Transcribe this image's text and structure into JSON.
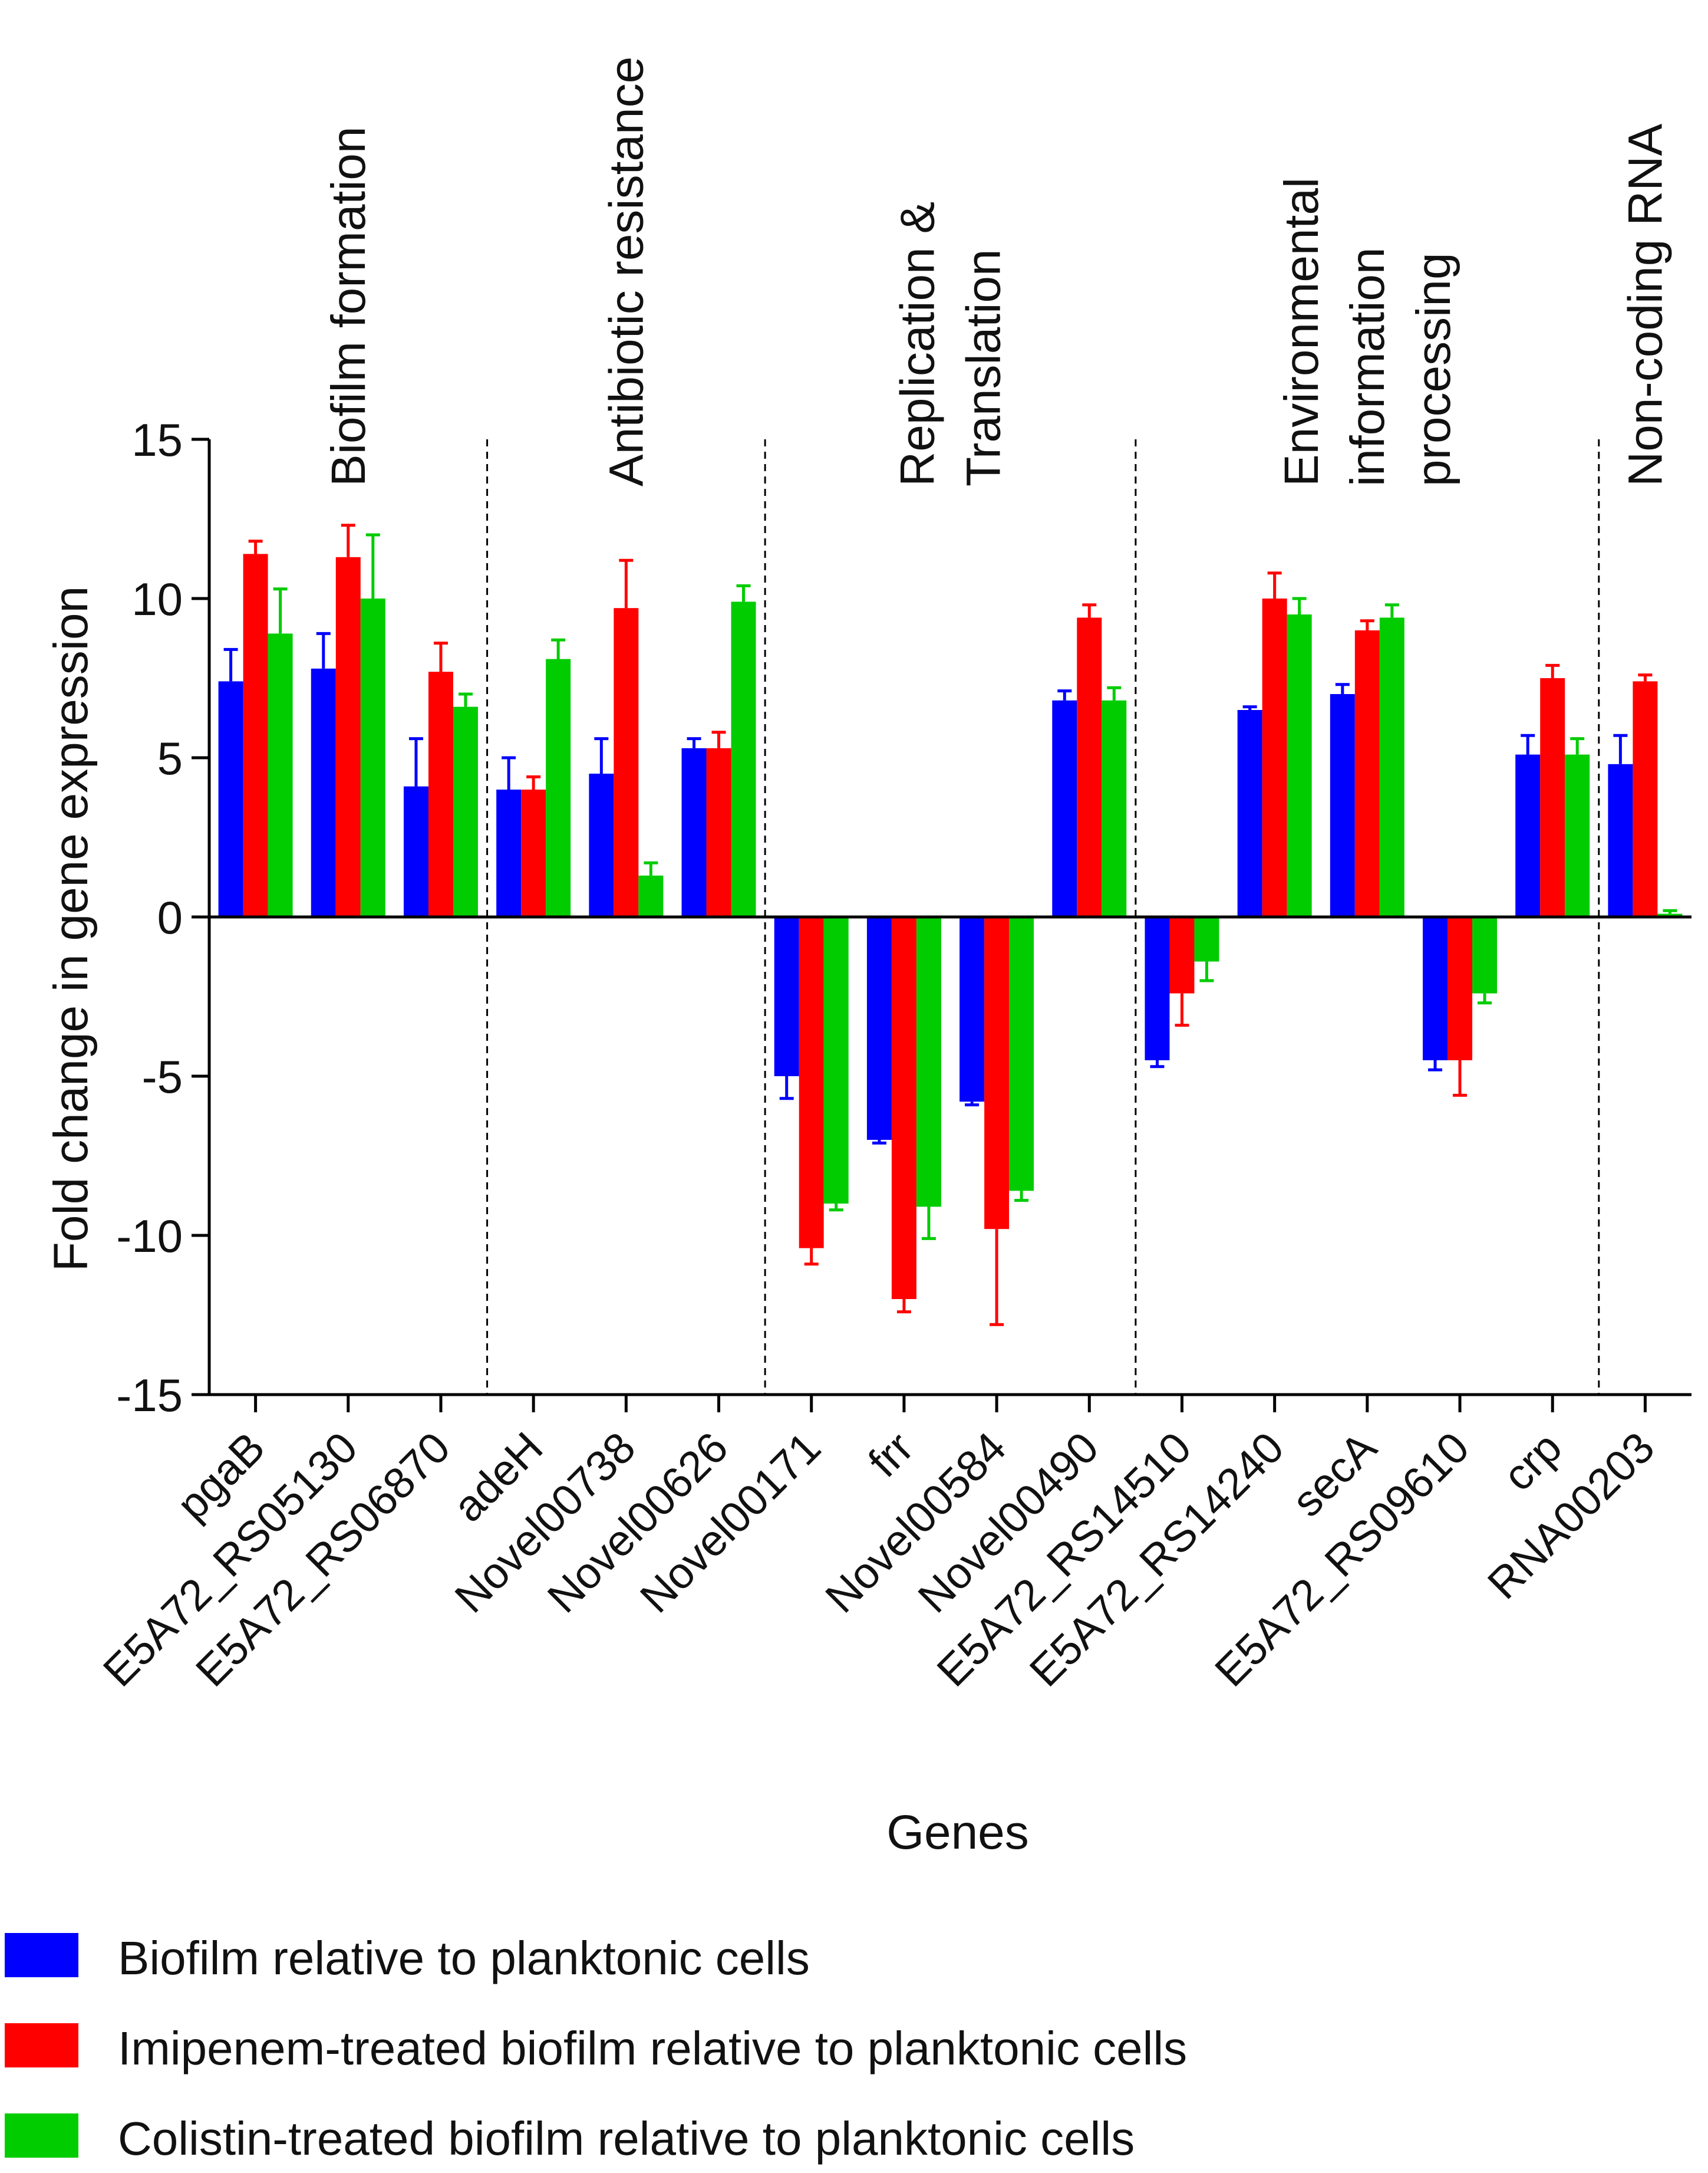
{
  "chart_data": {
    "type": "bar",
    "ylabel": "Fold change in gene expression",
    "xlabel": "Genes",
    "ylim": [
      -15,
      15
    ],
    "yticks": [
      15,
      10,
      5,
      0,
      -5,
      -10,
      -15
    ],
    "yticklabels": [
      "15",
      "10",
      "5",
      "0",
      "-5",
      "-10",
      "-15"
    ],
    "categories": [
      "pgaB",
      "E5A72_RS05130",
      "E5A72_RS06870",
      "adeH",
      "Novel00738",
      "Novel00626",
      "Novel00171",
      "frr",
      "Novel00584",
      "Novel00490",
      "E5A72_RS14510",
      "E5A72_RS14240",
      "secA",
      "E5A72_RS09610",
      "crp",
      "RNA00203"
    ],
    "series": [
      {
        "name": "Biofilm relative to planktonic cells",
        "color": "#0000ff",
        "values": [
          7.4,
          7.8,
          4.1,
          4.0,
          4.5,
          5.3,
          -5.0,
          -7.0,
          -5.8,
          6.8,
          -4.5,
          6.5,
          7.0,
          -4.5,
          5.1,
          4.8
        ],
        "errors": [
          1.0,
          1.1,
          1.5,
          1.0,
          1.1,
          0.3,
          0.7,
          0.1,
          0.1,
          0.3,
          0.2,
          0.1,
          0.3,
          0.3,
          0.6,
          0.9
        ]
      },
      {
        "name": "Imipenem-treated biofilm relative to planktonic cells",
        "color": "#ff0000",
        "values": [
          11.4,
          11.3,
          7.7,
          4.0,
          9.7,
          5.3,
          -10.4,
          -12.0,
          -9.8,
          9.4,
          -2.4,
          10.0,
          9.0,
          -4.5,
          7.5,
          7.4
        ],
        "errors": [
          0.4,
          1.0,
          0.9,
          0.4,
          1.5,
          0.5,
          0.5,
          0.4,
          3.0,
          0.4,
          1.0,
          0.8,
          0.3,
          1.1,
          0.4,
          0.2
        ]
      },
      {
        "name": "Colistin-treated biofilm relative to planktonic cells",
        "color": "#00cc00",
        "values": [
          8.9,
          10.0,
          6.6,
          8.1,
          1.3,
          9.9,
          -9.0,
          -9.1,
          -8.6,
          6.8,
          -1.4,
          9.5,
          9.4,
          -2.4,
          5.1,
          0.1
        ],
        "errors": [
          1.4,
          2.0,
          0.4,
          0.6,
          0.4,
          0.5,
          0.2,
          1.0,
          0.3,
          0.4,
          0.6,
          0.5,
          0.4,
          0.3,
          0.5,
          0.1
        ]
      }
    ],
    "groups": [
      {
        "label_lines": [
          "Biofilm formation"
        ],
        "start": 0,
        "end": 2
      },
      {
        "label_lines": [
          "Antibiotic resistance"
        ],
        "start": 3,
        "end": 5
      },
      {
        "label_lines": [
          "Replication &",
          "Translation"
        ],
        "start": 6,
        "end": 9
      },
      {
        "label_lines": [
          "Environmental",
          "information",
          "processing"
        ],
        "start": 10,
        "end": 14
      },
      {
        "label_lines": [
          "Non-coding RNA"
        ],
        "start": 15,
        "end": 15
      }
    ],
    "legend_position": "bottom-left"
  }
}
